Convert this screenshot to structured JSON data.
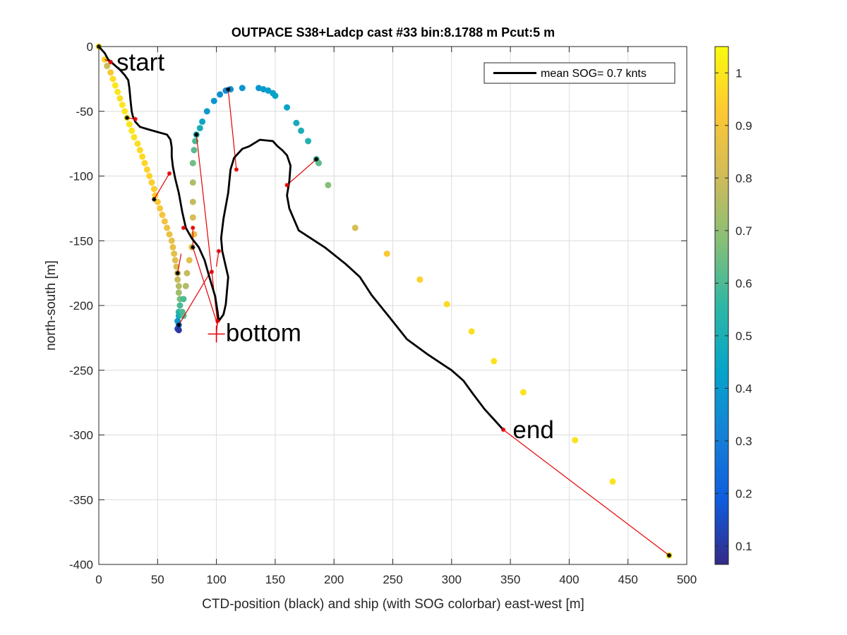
{
  "chart_data": {
    "type": "scatter",
    "title": "OUTPACE S38+Ladcp cast #33 bin:8.1788 m  Pcut:5 m",
    "xlabel": "CTD-position (black) and ship (with SOG colorbar) east-west [m]",
    "ylabel": "north-south [m]",
    "xlim": [
      0,
      500
    ],
    "ylim": [
      -400,
      0
    ],
    "xticks": [
      0,
      50,
      100,
      150,
      200,
      250,
      300,
      350,
      400,
      450,
      500
    ],
    "yticks": [
      0,
      -50,
      -100,
      -150,
      -200,
      -250,
      -300,
      -350,
      -400
    ],
    "grid": true,
    "legend": {
      "location": "top-right",
      "entries": [
        "mean SOG=  0.7 knts"
      ]
    },
    "colorbar": {
      "label": "",
      "range": [
        0.065,
        1.05
      ],
      "ticks": [
        0.1,
        0.2,
        0.3,
        0.4,
        0.5,
        0.6,
        0.7,
        0.8,
        0.9,
        1
      ],
      "colormap": "parula"
    },
    "annotations": [
      {
        "text": "start",
        "x": 15,
        "y": -12
      },
      {
        "text": "bottom",
        "x": 108,
        "y": -221
      },
      {
        "text": "end",
        "x": 352,
        "y": -296
      }
    ],
    "ship_points": [
      [
        0,
        0,
        0.99
      ],
      [
        5,
        -10,
        0.95
      ],
      [
        7,
        -15,
        0.8
      ],
      [
        10,
        -20,
        0.92
      ],
      [
        12,
        -25,
        0.98
      ],
      [
        14,
        -30,
        1.0
      ],
      [
        16,
        -35,
        1.0
      ],
      [
        18,
        -40,
        0.98
      ],
      [
        20,
        -45,
        1.0
      ],
      [
        22,
        -50,
        1.0
      ],
      [
        24,
        -55,
        1.0
      ],
      [
        26,
        -60,
        1.0
      ],
      [
        28,
        -65,
        1.0
      ],
      [
        30,
        -70,
        0.99
      ],
      [
        33,
        -75,
        0.98
      ],
      [
        35,
        -80,
        0.97
      ],
      [
        37,
        -85,
        0.97
      ],
      [
        39,
        -90,
        0.96
      ],
      [
        41,
        -95,
        0.95
      ],
      [
        43,
        -100,
        0.95
      ],
      [
        45,
        -105,
        0.94
      ],
      [
        47,
        -110,
        0.94
      ],
      [
        48,
        -115,
        0.93
      ],
      [
        50,
        -120,
        0.92
      ],
      [
        52,
        -125,
        0.91
      ],
      [
        54,
        -130,
        0.9
      ],
      [
        56,
        -135,
        0.89
      ],
      [
        58,
        -140,
        0.88
      ],
      [
        60,
        -145,
        0.87
      ],
      [
        62,
        -150,
        0.86
      ],
      [
        63,
        -155,
        0.86
      ],
      [
        64,
        -160,
        0.85
      ],
      [
        65,
        -165,
        0.84
      ],
      [
        66,
        -170,
        0.83
      ],
      [
        67,
        -175,
        0.82
      ],
      [
        67,
        -180,
        0.79
      ],
      [
        68,
        -185,
        0.76
      ],
      [
        68,
        -190,
        0.72
      ],
      [
        69,
        -195,
        0.66
      ],
      [
        69,
        -200,
        0.6
      ],
      [
        68,
        -205,
        0.55
      ],
      [
        68,
        -208,
        0.5
      ],
      [
        67,
        -212,
        0.4
      ],
      [
        68,
        -215,
        0.3
      ],
      [
        67,
        -218,
        0.15
      ],
      [
        68,
        -219,
        0.1
      ],
      [
        72,
        -208,
        0.62
      ],
      [
        71,
        -205,
        0.6
      ],
      [
        72,
        -195,
        0.6
      ],
      [
        74,
        -185,
        0.75
      ],
      [
        75,
        -175,
        0.78
      ],
      [
        77,
        -165,
        0.85
      ],
      [
        79,
        -155,
        0.87
      ],
      [
        81,
        -145,
        0.86
      ],
      [
        80,
        -132,
        0.82
      ],
      [
        80,
        -120,
        0.78
      ],
      [
        80,
        -105,
        0.75
      ],
      [
        80,
        -90,
        0.65
      ],
      [
        81,
        -80,
        0.62
      ],
      [
        82,
        -73,
        0.6
      ],
      [
        83,
        -68,
        0.5
      ],
      [
        86,
        -63,
        0.5
      ],
      [
        88,
        -58,
        0.45
      ],
      [
        92,
        -50,
        0.4
      ],
      [
        98,
        -42,
        0.38
      ],
      [
        103,
        -37,
        0.36
      ],
      [
        108,
        -34,
        0.35
      ],
      [
        112,
        -33,
        0.36
      ],
      [
        122,
        -32,
        0.38
      ],
      [
        136,
        -32,
        0.39
      ],
      [
        140,
        -33,
        0.4
      ],
      [
        144,
        -34,
        0.42
      ],
      [
        148,
        -36,
        0.42
      ],
      [
        150,
        -38,
        0.43
      ],
      [
        160,
        -47,
        0.44
      ],
      [
        168,
        -59,
        0.48
      ],
      [
        172,
        -65,
        0.5
      ],
      [
        178,
        -73,
        0.52
      ],
      [
        185,
        -87,
        0.58
      ],
      [
        187,
        -90,
        0.62
      ],
      [
        195,
        -107,
        0.68
      ],
      [
        218,
        -140,
        0.82
      ],
      [
        245,
        -160,
        0.92
      ],
      [
        273,
        -180,
        0.95
      ],
      [
        296,
        -199,
        0.97
      ],
      [
        317,
        -220,
        0.98
      ],
      [
        336,
        -243,
        0.99
      ],
      [
        361,
        -267,
        0.99
      ],
      [
        405,
        -304,
        0.99
      ],
      [
        437,
        -336,
        0.99
      ],
      [
        485,
        -393,
        1.0
      ]
    ],
    "ctd_track": [
      [
        0,
        0
      ],
      [
        5,
        -5
      ],
      [
        8,
        -10
      ],
      [
        13,
        -14
      ],
      [
        18,
        -18
      ],
      [
        22,
        -22
      ],
      [
        25,
        -26
      ],
      [
        26,
        -32
      ],
      [
        27,
        -42
      ],
      [
        28,
        -50
      ],
      [
        29,
        -54
      ],
      [
        31,
        -58
      ],
      [
        35,
        -62
      ],
      [
        42,
        -64
      ],
      [
        50,
        -66
      ],
      [
        58,
        -68
      ],
      [
        61,
        -72
      ],
      [
        62,
        -78
      ],
      [
        62,
        -85
      ],
      [
        63,
        -93
      ],
      [
        65,
        -102
      ],
      [
        68,
        -113
      ],
      [
        71,
        -128
      ],
      [
        74,
        -140
      ],
      [
        79,
        -148
      ],
      [
        85,
        -155
      ],
      [
        90,
        -165
      ],
      [
        94,
        -178
      ],
      [
        99,
        -193
      ],
      [
        101,
        -205
      ],
      [
        102,
        -212
      ],
      [
        106,
        -207
      ],
      [
        108,
        -199
      ],
      [
        110,
        -178
      ],
      [
        105,
        -158
      ],
      [
        104,
        -148
      ],
      [
        106,
        -133
      ],
      [
        110,
        -113
      ],
      [
        112,
        -95
      ],
      [
        115,
        -86
      ],
      [
        122,
        -79
      ],
      [
        128,
        -77
      ],
      [
        137,
        -72
      ],
      [
        148,
        -73
      ],
      [
        152,
        -77
      ],
      [
        156,
        -80
      ],
      [
        160,
        -84
      ],
      [
        163,
        -92
      ],
      [
        162,
        -104
      ],
      [
        160,
        -115
      ],
      [
        162,
        -125
      ],
      [
        170,
        -142
      ],
      [
        192,
        -155
      ],
      [
        210,
        -168
      ],
      [
        222,
        -178
      ],
      [
        232,
        -192
      ],
      [
        248,
        -210
      ],
      [
        262,
        -226
      ],
      [
        280,
        -238
      ],
      [
        300,
        -250
      ],
      [
        310,
        -258
      ],
      [
        318,
        -268
      ],
      [
        328,
        -280
      ],
      [
        336,
        -288
      ],
      [
        344,
        -296
      ]
    ],
    "red_links": [
      [
        [
          5,
          -10
        ],
        [
          10,
          -12
        ]
      ],
      [
        [
          24,
          -55
        ],
        [
          31,
          -56
        ]
      ],
      [
        [
          47,
          -118
        ],
        [
          60,
          -98
        ]
      ],
      [
        [
          67,
          -175
        ],
        [
          70,
          -160
        ]
      ],
      [
        [
          80,
          -155
        ],
        [
          80,
          -140
        ]
      ],
      [
        [
          102,
          -158
        ],
        [
          100,
          -170
        ]
      ],
      [
        [
          101,
          -212
        ],
        [
          100,
          -222
        ]
      ],
      [
        [
          83,
          -68
        ],
        [
          101,
          -214
        ]
      ],
      [
        [
          110,
          -33
        ],
        [
          117,
          -95
        ]
      ],
      [
        [
          160,
          -107
        ],
        [
          185,
          -87
        ]
      ],
      [
        [
          68,
          -215
        ],
        [
          95,
          -174
        ]
      ],
      [
        [
          80,
          -155
        ],
        [
          101,
          -215
        ]
      ],
      [
        [
          344,
          -296
        ],
        [
          485,
          -393
        ]
      ]
    ],
    "black_markers": [
      [
        0,
        0
      ],
      [
        10,
        -12
      ],
      [
        24,
        -55
      ],
      [
        47,
        -118
      ],
      [
        67,
        -175
      ],
      [
        80,
        -155
      ],
      [
        68,
        -215
      ],
      [
        83,
        -68
      ],
      [
        110,
        -33
      ],
      [
        185,
        -87
      ],
      [
        485,
        -393
      ]
    ],
    "red_markers": [
      [
        10,
        -12
      ],
      [
        31,
        -56
      ],
      [
        60,
        -98
      ],
      [
        72,
        -140
      ],
      [
        80,
        -140
      ],
      [
        102,
        -158
      ],
      [
        96,
        -174
      ],
      [
        101,
        -212
      ],
      [
        117,
        -95
      ],
      [
        160,
        -107
      ],
      [
        344,
        -296
      ]
    ],
    "bottom_cross": [
      100,
      -222
    ]
  }
}
